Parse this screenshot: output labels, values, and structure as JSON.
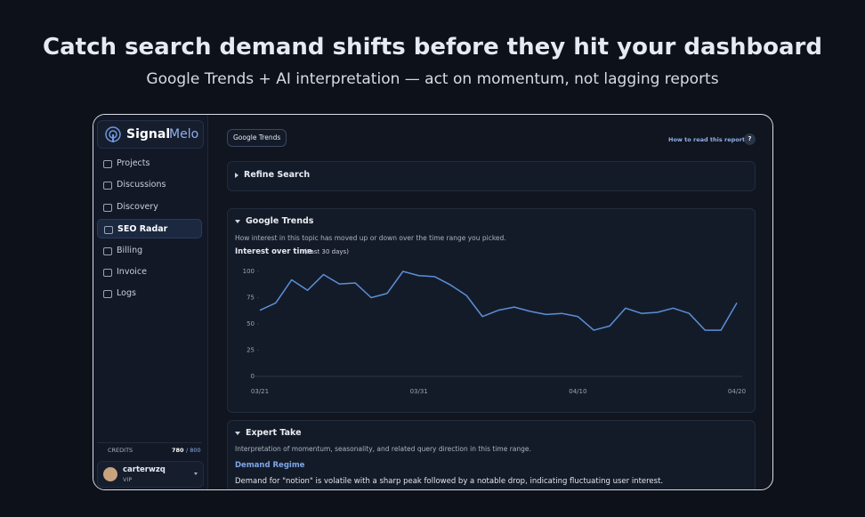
{
  "header": {
    "title": "Catch search demand shifts before they hit your dashboard",
    "subtitle": "Google Trends + AI interpretation — act on momentum, not lagging reports"
  },
  "sidebar": {
    "brand": {
      "part1": "Signal",
      "part2": "Melo"
    },
    "nav": [
      "Projects",
      "Discussions",
      "Discovery",
      "SEO Radar",
      "Billing",
      "Invoice",
      "Logs"
    ],
    "credits": {
      "label": "CREDITS",
      "used": "780",
      "total": "/ 800"
    },
    "user": {
      "name": "carterwzq",
      "plan": "VIP"
    }
  },
  "main": {
    "tab": "Google Trends",
    "help": "How to read this report",
    "help_icon": "?",
    "refine": "Refine Search",
    "trends": {
      "title": "Google Trends",
      "description": "How interest in this topic has moved up or down over the time range you picked.",
      "chart_title": "Interest over time",
      "chart_range": "(Past 30 days)"
    },
    "expert": {
      "title": "Expert Take",
      "description": "Interpretation of momentum, seasonality, and related query direction in this time range.",
      "regime_title": "Demand Regime",
      "regime_text": "Demand for \"notion\" is volatile with a sharp peak followed by a notable drop, indicating fluctuating user interest."
    }
  },
  "trends_chart": {
    "type": "line",
    "color": "#5b8fd8",
    "grid": false,
    "categories": [
      "03/21",
      null,
      null,
      null,
      null,
      null,
      null,
      null,
      null,
      null,
      "03/31",
      null,
      null,
      null,
      null,
      null,
      null,
      null,
      null,
      null,
      "04/10",
      null,
      null,
      null,
      null,
      null,
      null,
      null,
      null,
      null,
      "04/20"
    ],
    "values": [
      63,
      70,
      92,
      82,
      97,
      88,
      89,
      75,
      79,
      100,
      96,
      95,
      87,
      77,
      57,
      63,
      66,
      62,
      59,
      60,
      57,
      44,
      48,
      65,
      60,
      61,
      65,
      60,
      44,
      44,
      70
    ],
    "ylim": [
      0,
      100
    ],
    "yticks": [
      0,
      25,
      50,
      75,
      100
    ]
  }
}
